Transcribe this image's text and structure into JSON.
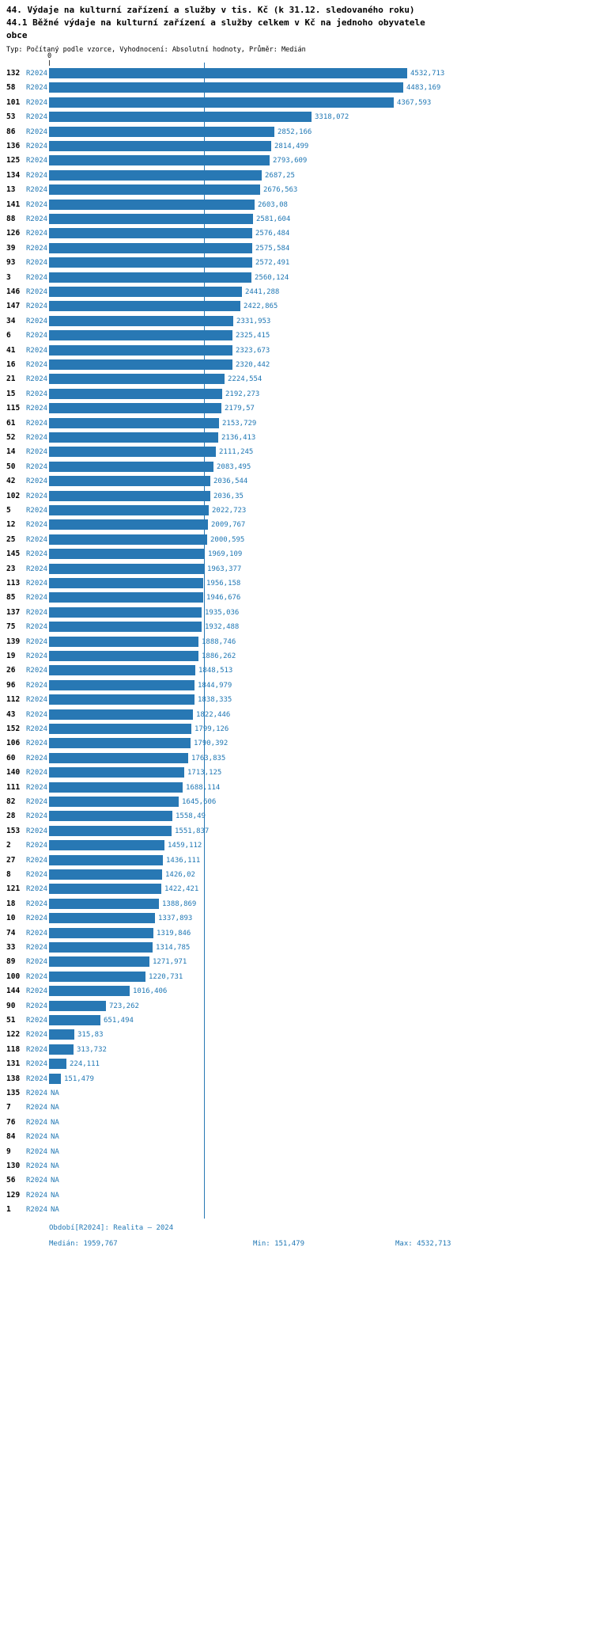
{
  "header": {
    "title_lines": [
      "44. Výdaje na kulturní zařízení a služby v tis. Kč (k 31.12. sledovaného roku)",
      "44.1 Běžné výdaje na kulturní zařízení a služby celkem v Kč na jednoho obyvatele",
      "obce"
    ],
    "meta": "Typ: Počítaný podle vzorce, Vyhodnocení: Absolutní hodnoty, Průměr: Medián"
  },
  "chart_data": {
    "type": "bar",
    "orientation": "horizontal",
    "title": "44. Výdaje na kulturní zařízení a služby v tis. Kč (k 31.12. sledovaného roku)",
    "subtitle": "44.1 Běžné výdaje na kulturní zařízení a služby celkem v Kč na jednoho obyvatele obce",
    "period_label": "R2024",
    "na_text": "NA",
    "axis": {
      "zero_label": "0",
      "xlim": [
        0,
        4532.713
      ]
    },
    "median_value": 1959.767,
    "grid": false,
    "colors": {
      "bar": "#2878B4",
      "value_text": "#1F77B4",
      "median_line": "#2878B4",
      "id_text": "#000000",
      "footer_text": "#1F77B4"
    },
    "rows": [
      {
        "id": "132",
        "value": 4532.713,
        "label": "4532,713"
      },
      {
        "id": "58",
        "value": 4483.169,
        "label": "4483,169"
      },
      {
        "id": "101",
        "value": 4367.593,
        "label": "4367,593"
      },
      {
        "id": "53",
        "value": 3318.072,
        "label": "3318,072"
      },
      {
        "id": "86",
        "value": 2852.166,
        "label": "2852,166"
      },
      {
        "id": "136",
        "value": 2814.499,
        "label": "2814,499"
      },
      {
        "id": "125",
        "value": 2793.609,
        "label": "2793,609"
      },
      {
        "id": "134",
        "value": 2687.25,
        "label": "2687,25"
      },
      {
        "id": "13",
        "value": 2676.563,
        "label": "2676,563"
      },
      {
        "id": "141",
        "value": 2603.08,
        "label": "2603,08"
      },
      {
        "id": "88",
        "value": 2581.604,
        "label": "2581,604"
      },
      {
        "id": "126",
        "value": 2576.484,
        "label": "2576,484"
      },
      {
        "id": "39",
        "value": 2575.584,
        "label": "2575,584"
      },
      {
        "id": "93",
        "value": 2572.491,
        "label": "2572,491"
      },
      {
        "id": "3",
        "value": 2560.124,
        "label": "2560,124"
      },
      {
        "id": "146",
        "value": 2441.288,
        "label": "2441,288"
      },
      {
        "id": "147",
        "value": 2422.865,
        "label": "2422,865"
      },
      {
        "id": "34",
        "value": 2331.953,
        "label": "2331,953"
      },
      {
        "id": "6",
        "value": 2325.415,
        "label": "2325,415"
      },
      {
        "id": "41",
        "value": 2323.673,
        "label": "2323,673"
      },
      {
        "id": "16",
        "value": 2320.442,
        "label": "2320,442"
      },
      {
        "id": "21",
        "value": 2224.554,
        "label": "2224,554"
      },
      {
        "id": "15",
        "value": 2192.273,
        "label": "2192,273"
      },
      {
        "id": "115",
        "value": 2179.57,
        "label": "2179,57"
      },
      {
        "id": "61",
        "value": 2153.729,
        "label": "2153,729"
      },
      {
        "id": "52",
        "value": 2136.413,
        "label": "2136,413"
      },
      {
        "id": "14",
        "value": 2111.245,
        "label": "2111,245"
      },
      {
        "id": "50",
        "value": 2083.495,
        "label": "2083,495"
      },
      {
        "id": "42",
        "value": 2036.544,
        "label": "2036,544"
      },
      {
        "id": "102",
        "value": 2036.35,
        "label": "2036,35"
      },
      {
        "id": "5",
        "value": 2022.723,
        "label": "2022,723"
      },
      {
        "id": "12",
        "value": 2009.767,
        "label": "2009,767"
      },
      {
        "id": "25",
        "value": 2000.595,
        "label": "2000,595"
      },
      {
        "id": "145",
        "value": 1969.109,
        "label": "1969,109"
      },
      {
        "id": "23",
        "value": 1963.377,
        "label": "1963,377"
      },
      {
        "id": "113",
        "value": 1956.158,
        "label": "1956,158"
      },
      {
        "id": "85",
        "value": 1946.676,
        "label": "1946,676"
      },
      {
        "id": "137",
        "value": 1935.036,
        "label": "1935,036"
      },
      {
        "id": "75",
        "value": 1932.488,
        "label": "1932,488"
      },
      {
        "id": "139",
        "value": 1888.746,
        "label": "1888,746"
      },
      {
        "id": "19",
        "value": 1886.262,
        "label": "1886,262"
      },
      {
        "id": "26",
        "value": 1848.513,
        "label": "1848,513"
      },
      {
        "id": "96",
        "value": 1844.979,
        "label": "1844,979"
      },
      {
        "id": "112",
        "value": 1838.335,
        "label": "1838,335"
      },
      {
        "id": "43",
        "value": 1822.446,
        "label": "1822,446"
      },
      {
        "id": "152",
        "value": 1799.126,
        "label": "1799,126"
      },
      {
        "id": "106",
        "value": 1790.392,
        "label": "1790,392"
      },
      {
        "id": "60",
        "value": 1763.835,
        "label": "1763,835"
      },
      {
        "id": "140",
        "value": 1713.125,
        "label": "1713,125"
      },
      {
        "id": "111",
        "value": 1688.114,
        "label": "1688,114"
      },
      {
        "id": "82",
        "value": 1645.606,
        "label": "1645,606"
      },
      {
        "id": "28",
        "value": 1558.49,
        "label": "1558,49"
      },
      {
        "id": "153",
        "value": 1551.837,
        "label": "1551,837"
      },
      {
        "id": "2",
        "value": 1459.112,
        "label": "1459,112"
      },
      {
        "id": "27",
        "value": 1436.111,
        "label": "1436,111"
      },
      {
        "id": "8",
        "value": 1426.02,
        "label": "1426,02"
      },
      {
        "id": "121",
        "value": 1422.421,
        "label": "1422,421"
      },
      {
        "id": "18",
        "value": 1388.869,
        "label": "1388,869"
      },
      {
        "id": "10",
        "value": 1337.893,
        "label": "1337,893"
      },
      {
        "id": "74",
        "value": 1319.846,
        "label": "1319,846"
      },
      {
        "id": "33",
        "value": 1314.785,
        "label": "1314,785"
      },
      {
        "id": "89",
        "value": 1271.971,
        "label": "1271,971"
      },
      {
        "id": "100",
        "value": 1220.731,
        "label": "1220,731"
      },
      {
        "id": "144",
        "value": 1016.406,
        "label": "1016,406"
      },
      {
        "id": "90",
        "value": 723.262,
        "label": "723,262"
      },
      {
        "id": "51",
        "value": 651.494,
        "label": "651,494"
      },
      {
        "id": "122",
        "value": 315.83,
        "label": "315,83"
      },
      {
        "id": "118",
        "value": 313.732,
        "label": "313,732"
      },
      {
        "id": "131",
        "value": 224.111,
        "label": "224,111"
      },
      {
        "id": "138",
        "value": 151.479,
        "label": "151,479"
      },
      {
        "id": "135",
        "value": null,
        "label": "NA"
      },
      {
        "id": "7",
        "value": null,
        "label": "NA"
      },
      {
        "id": "76",
        "value": null,
        "label": "NA"
      },
      {
        "id": "84",
        "value": null,
        "label": "NA"
      },
      {
        "id": "9",
        "value": null,
        "label": "NA"
      },
      {
        "id": "130",
        "value": null,
        "label": "NA"
      },
      {
        "id": "56",
        "value": null,
        "label": "NA"
      },
      {
        "id": "129",
        "value": null,
        "label": "NA"
      },
      {
        "id": "1",
        "value": null,
        "label": "NA"
      }
    ],
    "footer": {
      "period": "Období[R2024]: Realita – 2024",
      "median": "Medián: 1959,767",
      "min": "Min: 151,479",
      "max": "Max: 4532,713"
    }
  }
}
